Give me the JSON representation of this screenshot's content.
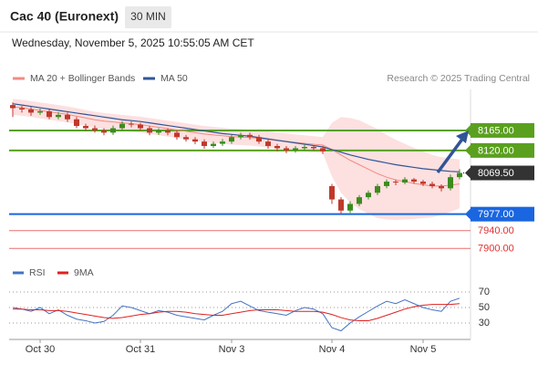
{
  "chart_data": [
    {
      "type": "candlestick",
      "title": "Cac 40 (Euronext)",
      "interval": "30 MIN",
      "subtitle": "Wednesday, November 5, 2025 10:55:05 AM CET",
      "source": "Research © 2025 Trading Central",
      "categories": [
        null,
        null,
        null,
        "Oct 30",
        null,
        null,
        null,
        null,
        null,
        null,
        null,
        null,
        null,
        null,
        "Oct 31",
        null,
        null,
        null,
        null,
        null,
        null,
        null,
        null,
        null,
        "Nov 3",
        null,
        null,
        null,
        null,
        null,
        null,
        null,
        null,
        null,
        null,
        "Nov 4",
        null,
        null,
        null,
        null,
        null,
        null,
        null,
        null,
        null,
        "Nov 5",
        null,
        null,
        null,
        null
      ],
      "open": [
        8222,
        8215,
        8212,
        8205,
        8208,
        8195,
        8200,
        8190,
        8175,
        8170,
        8165,
        8160,
        8170,
        8180,
        8178,
        8170,
        8160,
        8165,
        8160,
        8150,
        8145,
        8140,
        8130,
        8135,
        8140,
        8150,
        8155,
        8150,
        8140,
        8130,
        8125,
        8120,
        8125,
        8128,
        8125,
        8040,
        8010,
        7985,
        8000,
        8015,
        8025,
        8040,
        8050,
        8048,
        8055,
        8050,
        8045,
        8040,
        8035,
        8060
      ],
      "high": [
        8228,
        8220,
        8218,
        8214,
        8212,
        8206,
        8205,
        8195,
        8180,
        8176,
        8170,
        8176,
        8186,
        8185,
        8182,
        8175,
        8170,
        8170,
        8166,
        8155,
        8150,
        8145,
        8140,
        8146,
        8156,
        8160,
        8160,
        8155,
        8145,
        8135,
        8130,
        8130,
        8134,
        8132,
        8130,
        8045,
        8015,
        8006,
        8020,
        8030,
        8045,
        8055,
        8054,
        8060,
        8058,
        8054,
        8050,
        8044,
        8066,
        8078
      ],
      "low": [
        8195,
        8205,
        8198,
        8200,
        8190,
        8190,
        8184,
        8170,
        8164,
        8160,
        8154,
        8155,
        8165,
        8172,
        8165,
        8154,
        8155,
        8154,
        8144,
        8140,
        8134,
        8124,
        8126,
        8130,
        8135,
        8145,
        8144,
        8135,
        8124,
        8118,
        8114,
        8115,
        8120,
        8120,
        8112,
        8000,
        7977,
        7980,
        7995,
        8010,
        8020,
        8035,
        8042,
        8044,
        8045,
        8040,
        8035,
        8028,
        8030,
        8055
      ],
      "close": [
        8215,
        8212,
        8205,
        8208,
        8195,
        8200,
        8190,
        8175,
        8170,
        8165,
        8160,
        8170,
        8180,
        8178,
        8170,
        8160,
        8165,
        8160,
        8150,
        8145,
        8140,
        8130,
        8135,
        8140,
        8150,
        8155,
        8150,
        8140,
        8130,
        8125,
        8120,
        8125,
        8128,
        8125,
        8118,
        8010,
        7985,
        8000,
        8015,
        8025,
        8040,
        8050,
        8048,
        8055,
        8050,
        8045,
        8040,
        8035,
        8060,
        8069.5
      ],
      "up_color": "#3d8b1f",
      "down_color": "#c0392b",
      "series": [
        {
          "name": "MA 20 + Bollinger Bands",
          "color": "#f28b82",
          "band_color": "#fde0e0",
          "values": [
            8218,
            8216,
            8213,
            8210,
            8207,
            8204,
            8201,
            8197,
            8193,
            8189,
            8186,
            8184,
            8182,
            8180,
            8178,
            8175,
            8172,
            8169,
            8166,
            8163,
            8160,
            8157,
            8155,
            8153,
            8151,
            8150,
            8149,
            8147,
            8145,
            8142,
            8140,
            8138,
            8136,
            8134,
            8132,
            8122,
            8110,
            8098,
            8088,
            8078,
            8068,
            8060,
            8054,
            8050,
            8046,
            8043,
            8040,
            8040,
            8042,
            8045
          ],
          "upper": [
            8236,
            8234,
            8231,
            8228,
            8225,
            8222,
            8219,
            8215,
            8211,
            8207,
            8204,
            8202,
            8200,
            8198,
            8196,
            8193,
            8190,
            8187,
            8184,
            8181,
            8178,
            8175,
            8173,
            8171,
            8169,
            8168,
            8167,
            8165,
            8163,
            8160,
            8158,
            8156,
            8154,
            8152,
            8150,
            8182,
            8195,
            8193,
            8188,
            8178,
            8168,
            8155,
            8144,
            8135,
            8126,
            8118,
            8110,
            8105,
            8102,
            8100
          ],
          "lower": [
            8200,
            8198,
            8195,
            8192,
            8189,
            8186,
            8183,
            8179,
            8175,
            8171,
            8168,
            8166,
            8164,
            8162,
            8160,
            8157,
            8154,
            8151,
            8148,
            8145,
            8142,
            8139,
            8137,
            8135,
            8133,
            8132,
            8131,
            8129,
            8127,
            8124,
            8122,
            8120,
            8118,
            8116,
            8114,
            8062,
            8025,
            8003,
            7988,
            7978,
            7968,
            7965,
            7964,
            7965,
            7966,
            7968,
            7970,
            7975,
            7982,
            7990
          ]
        },
        {
          "name": "MA 50",
          "color": "#2f5597",
          "values": [
            8225,
            8222,
            8219,
            8216,
            8213,
            8210,
            8207,
            8204,
            8201,
            8198,
            8195,
            8192,
            8189,
            8187,
            8185,
            8182,
            8179,
            8176,
            8173,
            8170,
            8167,
            8164,
            8161,
            8158,
            8156,
            8154,
            8152,
            8149,
            8146,
            8143,
            8140,
            8137,
            8134,
            8131,
            8128,
            8122,
            8116,
            8110,
            8105,
            8100,
            8096,
            8092,
            8088,
            8085,
            8082,
            8079,
            8077,
            8075,
            8073,
            8072
          ]
        }
      ],
      "levels": [
        {
          "value": 8165,
          "label": "8165.00",
          "color": "#5aa01e",
          "line": "solid",
          "box": true
        },
        {
          "value": 8120,
          "label": "8120.00",
          "color": "#5aa01e",
          "line": "solid",
          "box": true
        },
        {
          "value": 8069.5,
          "label": "8069.50",
          "color": "#333333",
          "line": "dotted",
          "box": true
        },
        {
          "value": 7977,
          "label": "7977.00",
          "color": "#1a66e0",
          "line": "solid",
          "box": true
        },
        {
          "value": 7940,
          "label": "7940.00",
          "color": "#e03030",
          "line": "thin",
          "box": false
        },
        {
          "value": 7900,
          "label": "7900.00",
          "color": "#e03030",
          "line": "thin",
          "box": false
        }
      ],
      "ylim": [
        7880,
        8253
      ]
    },
    {
      "type": "line",
      "series": [
        {
          "name": "RSI",
          "color": "#4472c4",
          "values": [
            50,
            48,
            45,
            50,
            42,
            47,
            40,
            35,
            33,
            30,
            32,
            40,
            52,
            50,
            46,
            42,
            46,
            44,
            40,
            38,
            36,
            34,
            40,
            45,
            55,
            58,
            52,
            46,
            44,
            42,
            40,
            46,
            50,
            48,
            42,
            24,
            20,
            30,
            38,
            45,
            52,
            58,
            55,
            60,
            55,
            50,
            47,
            45,
            58,
            62
          ]
        },
        {
          "name": "9MA",
          "color": "#e02020",
          "values": [
            48,
            48,
            47,
            47,
            46,
            46,
            45,
            43,
            41,
            39,
            37,
            36,
            37,
            39,
            41,
            42,
            44,
            45,
            45,
            44,
            42,
            41,
            40,
            40,
            42,
            44,
            46,
            47,
            47,
            47,
            46,
            45,
            45,
            45,
            44,
            41,
            37,
            34,
            33,
            33,
            36,
            40,
            44,
            48,
            51,
            53,
            54,
            54,
            54,
            55
          ]
        }
      ],
      "ylim": [
        10,
        90
      ],
      "yticks": [
        30,
        50,
        70
      ],
      "grid": true
    }
  ]
}
